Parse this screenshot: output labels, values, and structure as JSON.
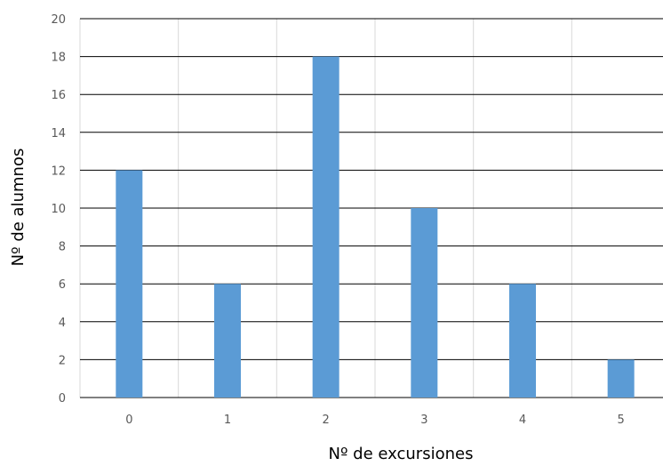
{
  "chart_data": {
    "type": "bar",
    "title": "",
    "xlabel": "Nº de excursiones",
    "ylabel": "Nº de alumnos",
    "categories": [
      "0",
      "1",
      "2",
      "3",
      "4",
      "5"
    ],
    "values": [
      12,
      6,
      18,
      10,
      6,
      2
    ],
    "ylim": [
      0,
      20
    ],
    "yticks": [
      0,
      2,
      4,
      6,
      8,
      10,
      12,
      14,
      16,
      18,
      20
    ],
    "grid": "horizontal major lines and vertical category separators",
    "legend": "none",
    "colors": {
      "bar": "#5B9BD5",
      "gridline": "#000000",
      "category_separator": "#D9D9D9",
      "tick_label": "#595959",
      "axis_title": "#000000"
    }
  }
}
